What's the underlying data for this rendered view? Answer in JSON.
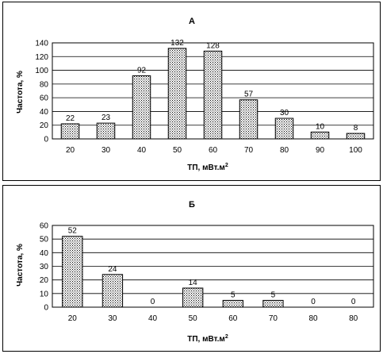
{
  "chart_data": [
    {
      "type": "bar",
      "title": "А",
      "xlabel": "ТП, мВт.м",
      "xlabel_sup": "2",
      "ylabel": "Частота, %",
      "categories": [
        "20",
        "30",
        "40",
        "50",
        "60",
        "70",
        "80",
        "90",
        "100"
      ],
      "values": [
        22,
        23,
        92,
        132,
        128,
        57,
        30,
        10,
        8
      ],
      "data_labels": [
        "22",
        "23",
        "92",
        "132",
        "128",
        "57",
        "30",
        "10",
        "8"
      ],
      "ylim": [
        0,
        140
      ],
      "yticks": [
        0,
        20,
        40,
        60,
        80,
        100,
        120,
        140
      ],
      "grid": true,
      "bar_fill": "dotted"
    },
    {
      "type": "bar",
      "title": "Б",
      "xlabel": "ТП, мВт.м",
      "xlabel_sup": "2",
      "ylabel": "Частота, %",
      "categories": [
        "20",
        "30",
        "40",
        "50",
        "60",
        "70",
        "80",
        "80"
      ],
      "values": [
        52,
        24,
        0,
        14,
        5,
        5,
        0,
        0
      ],
      "data_labels": [
        "52",
        "24",
        "0",
        "14",
        "5",
        "5",
        "0",
        "0"
      ],
      "ylim": [
        0,
        60
      ],
      "yticks": [
        0,
        10,
        20,
        30,
        40,
        50,
        60
      ],
      "grid": true,
      "bar_fill": "dotted"
    }
  ]
}
